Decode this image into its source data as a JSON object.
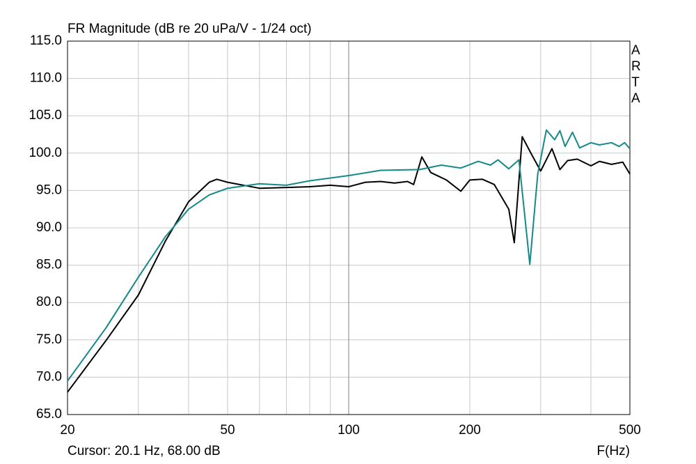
{
  "chart_data": {
    "type": "line",
    "title": "FR Magnitude (dB re 20 uPa/V - 1/24 oct)",
    "brand": "ARTA",
    "cursor": "Cursor: 20.1 Hz, 68.00 dB",
    "x_label": "F(Hz)",
    "xscale": "log",
    "xlim": [
      20,
      500
    ],
    "xticks": [
      20,
      50,
      100,
      200,
      500
    ],
    "x_minor_ticks": [
      30,
      40,
      60,
      70,
      80,
      90,
      300,
      400
    ],
    "ylim": [
      65,
      115
    ],
    "yticks": [
      {
        "value": 65,
        "label": "65.0"
      },
      {
        "value": 70,
        "label": "70.0"
      },
      {
        "value": 75,
        "label": "75.0"
      },
      {
        "value": 80,
        "label": "80.0"
      },
      {
        "value": 85,
        "label": "85.0"
      },
      {
        "value": 90,
        "label": "90.0"
      },
      {
        "value": 95,
        "label": "95.0"
      },
      {
        "value": 100,
        "label": "100.0"
      },
      {
        "value": 105,
        "label": "105.0"
      },
      {
        "value": 110,
        "label": "110.0"
      },
      {
        "value": 115,
        "label": "115.0"
      }
    ],
    "grid": true,
    "series": [
      {
        "color": "#000000",
        "x": [
          20,
          25,
          30,
          35,
          40,
          45,
          47,
          50,
          60,
          70,
          80,
          90,
          100,
          110,
          120,
          130,
          140,
          145,
          152,
          160,
          175,
          190,
          200,
          215,
          230,
          250,
          258,
          270,
          285,
          300,
          320,
          335,
          350,
          370,
          400,
          420,
          450,
          480,
          500
        ],
        "values": [
          68.0,
          75.0,
          81.0,
          88.2,
          93.5,
          96.1,
          96.5,
          96.1,
          95.3,
          95.4,
          95.5,
          95.7,
          95.5,
          96.1,
          96.2,
          96.0,
          96.2,
          95.8,
          99.5,
          97.4,
          96.4,
          94.9,
          96.4,
          96.5,
          95.8,
          92.5,
          88.0,
          102.2,
          99.8,
          97.6,
          100.6,
          97.8,
          99.0,
          99.2,
          98.3,
          98.9,
          98.5,
          98.8,
          97.2
        ]
      },
      {
        "color": "#13898a",
        "x": [
          20,
          25,
          30,
          35,
          40,
          45,
          50,
          60,
          70,
          80,
          100,
          120,
          150,
          170,
          190,
          210,
          225,
          235,
          250,
          265,
          282,
          295,
          310,
          325,
          335,
          345,
          360,
          375,
          400,
          420,
          450,
          470,
          485,
          500
        ],
        "values": [
          69.5,
          76.7,
          83.4,
          88.8,
          92.5,
          94.4,
          95.3,
          95.9,
          95.7,
          96.3,
          97.0,
          97.7,
          97.8,
          98.4,
          98.0,
          98.9,
          98.4,
          99.1,
          97.9,
          99.1,
          85.1,
          97.2,
          103.1,
          101.8,
          103.0,
          100.9,
          102.8,
          100.7,
          101.4,
          101.1,
          101.4,
          100.9,
          101.4,
          100.6
        ]
      }
    ]
  }
}
